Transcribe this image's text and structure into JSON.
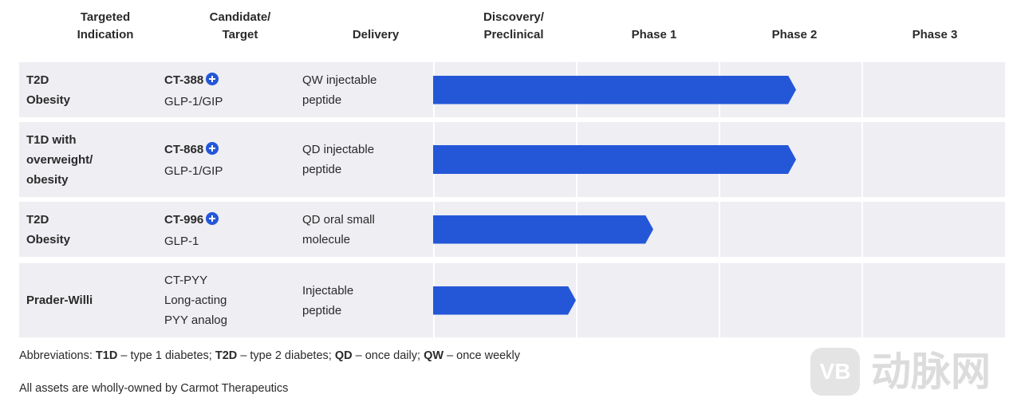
{
  "header": {
    "columns": [
      [
        "Targeted",
        "Indication"
      ],
      [
        "Candidate/",
        "Target"
      ],
      [
        "Delivery"
      ],
      [
        "Discovery/",
        "Preclinical"
      ],
      [
        "Phase 1"
      ],
      [
        "Phase 2"
      ],
      [
        "Phase 3"
      ]
    ]
  },
  "rows": [
    {
      "indication": [
        "T2D",
        "Obesity"
      ],
      "candidate": "CT-388",
      "target": [
        "GLP-1/GIP"
      ],
      "delivery": [
        "QW injectable",
        "peptide"
      ]
    },
    {
      "indication": [
        "T1D with",
        "overweight/",
        "obesity"
      ],
      "candidate": "CT-868",
      "target": [
        "GLP-1/GIP"
      ],
      "delivery": [
        "QD injectable",
        "peptide"
      ]
    },
    {
      "indication": [
        "T2D",
        "Obesity"
      ],
      "candidate": "CT-996",
      "target": [
        "GLP-1"
      ],
      "delivery": [
        "QD oral small",
        "molecule"
      ]
    },
    {
      "indication": [
        "Prader-Willi"
      ],
      "target": [
        "CT-PYY",
        "Long-acting",
        "PYY analog"
      ],
      "delivery": [
        "Injectable",
        "peptide"
      ]
    }
  ],
  "footnotes": {
    "abbreviations": {
      "label": "Abbreviations:",
      "items": [
        {
          "term": "T1D",
          "definition": "– type 1 diabetes;"
        },
        {
          "term": "T2D",
          "definition": "– type 2 diabetes;"
        },
        {
          "term": "QD",
          "definition": "– once daily;"
        },
        {
          "term": "QW",
          "definition": "– once weekly"
        }
      ]
    },
    "ownership": "All assets are wholly-owned by Carmot Therapeutics"
  },
  "watermark": {
    "logo": "VB",
    "text": "动脉网"
  }
}
